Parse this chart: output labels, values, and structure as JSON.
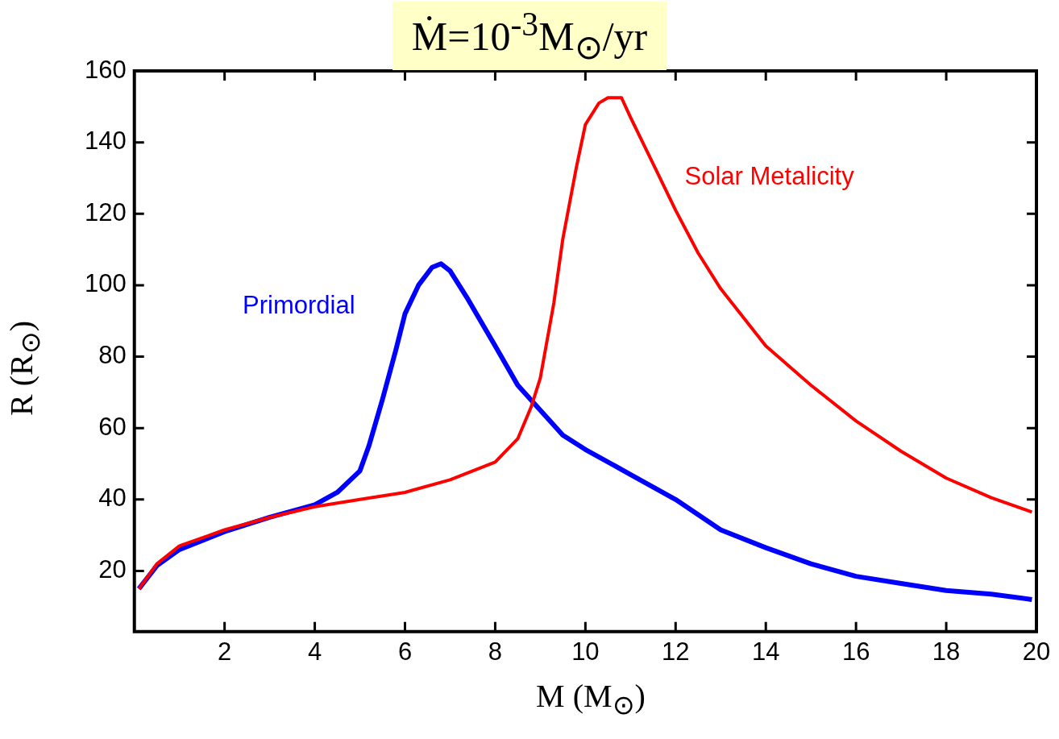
{
  "chart_data": {
    "type": "line",
    "title": "Ṁ=10$^{-3}$M$_{⊙}$/yr",
    "xlabel": "M (M$_{⊙}$)",
    "ylabel": "R (R$_{⊙}$)",
    "xlim": [
      0,
      20
    ],
    "xticks": [
      2,
      4,
      6,
      8,
      10,
      12,
      14,
      16,
      18,
      20
    ],
    "ylim": [
      3,
      160
    ],
    "yticks": [
      20,
      40,
      60,
      80,
      100,
      120,
      140,
      160
    ],
    "grid": false,
    "legend": false,
    "marker": "none",
    "line_style": "solid",
    "series": [
      {
        "name": "Primordial",
        "color": "#0000ff",
        "x": [
          0.1,
          0.5,
          1,
          2,
          3,
          4,
          4.5,
          5,
          5.2,
          5.5,
          5.8,
          6,
          6.3,
          6.6,
          6.8,
          7,
          7.4,
          8,
          8.5,
          9,
          9.5,
          10,
          11,
          12,
          13,
          14,
          15,
          16,
          17,
          18,
          19,
          19.9
        ],
        "values": [
          15,
          21.5,
          26,
          31,
          35,
          38.5,
          42,
          48,
          55,
          68,
          82,
          92,
          100,
          105,
          106,
          104,
          96,
          83,
          72,
          65,
          58,
          54,
          47,
          40,
          31.5,
          26.5,
          22,
          18.5,
          16.5,
          14.5,
          13.5,
          12
        ]
      },
      {
        "name": "Solar Metalicity",
        "color": "#ff0000",
        "x": [
          0.1,
          0.5,
          1,
          2,
          3,
          4,
          5,
          6,
          7,
          8,
          8.5,
          8.8,
          9,
          9.3,
          9.5,
          9.8,
          10,
          10.3,
          10.5,
          10.8,
          11,
          11.5,
          12,
          12.5,
          13,
          14,
          15,
          16,
          17,
          18,
          19,
          19.9
        ],
        "values": [
          15,
          22,
          27,
          31.5,
          35,
          38,
          40,
          42,
          45.5,
          50.5,
          57,
          66,
          74,
          95,
          113,
          133,
          145,
          151,
          152.5,
          152.5,
          147,
          134,
          121,
          109,
          99,
          83,
          72,
          62,
          53.5,
          46,
          40.5,
          36.5
        ]
      }
    ]
  }
}
